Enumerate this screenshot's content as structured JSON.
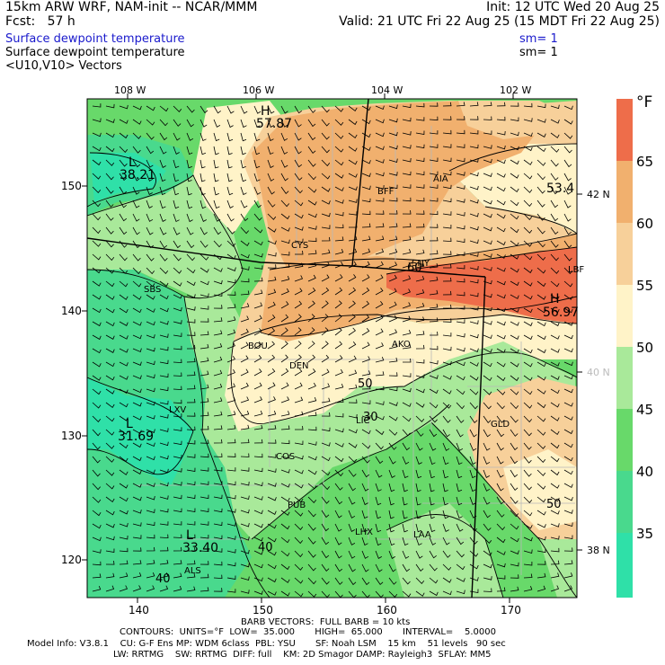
{
  "header": {
    "model_title": "15km ARW WRF, NAM-init -- NCAR/MMM",
    "init": "Init: 12 UTC Wed 20 Aug 25",
    "fcst": "Fcst:   57 h",
    "valid": "Valid: 21 UTC Fri 22 Aug 25 (15 MDT Fri 22 Aug 25)",
    "field1": "Surface dewpoint temperature",
    "sm1": "sm= 1",
    "field2": "Surface dewpoint temperature",
    "sm2": "sm= 1",
    "field3": "<U10,V10> Vectors"
  },
  "colors": {
    "c30": "#2fe0a8",
    "c35": "#49d98d",
    "c40": "#68d96a",
    "c45": "#a9e99a",
    "c50": "#fff3c8",
    "c55": "#f7d09a",
    "c60": "#f1b06e",
    "c65": "#ee6d4a",
    "accent_blue": "#1a1acc"
  },
  "top_axis": [
    "108 W",
    "106 W",
    "104 W",
    "102 W"
  ],
  "left_axis": [
    "150",
    "140",
    "130",
    "120"
  ],
  "bottom_axis": [
    "140",
    "150",
    "160",
    "170"
  ],
  "lat_labels": [
    "42 N",
    "40 N",
    "38 N"
  ],
  "colorbar": {
    "unit": "°F",
    "ticks": [
      "65",
      "60",
      "55",
      "50",
      "45",
      "40",
      "35"
    ]
  },
  "map_labels": {
    "highs": [
      "H",
      "H"
    ],
    "high_values": [
      "57.87",
      "56.97"
    ],
    "lows": [
      "L",
      "L",
      "L"
    ],
    "low_values": [
      "38.21",
      "31.69",
      "33.40"
    ],
    "extra_value": "53.4",
    "contours": [
      "50",
      "40",
      "50",
      "40",
      "30",
      "60",
      "50"
    ],
    "stations": [
      "BFF",
      "AIA",
      "CYS",
      "SNY",
      "SBS",
      "LBF",
      "BOU",
      "DEN",
      "AKO",
      "LIC",
      "LXV",
      "GLD",
      "COS",
      "PUB",
      "LHX",
      "LAA",
      "ALS"
    ]
  },
  "footer": {
    "barb": "BARB VECTORS:  FULL BARB = 10 kts",
    "contours": "CONTOURS:  UNITS=°F  LOW=  35.000       HIGH=  65.000       INTERVAL=    5.0000",
    "model1": "Model Info: V3.8.1    CU: G-F Ens MP: WDM 6class  PBL: YSU       SF: Noah LSM    15 km    51 levels   90 sec",
    "model2": "LW: RRTMG    SW: RRTMG  DIFF: full    KM: 2D Smagor DAMP: Rayleigh3  SFLAY: MM5"
  }
}
